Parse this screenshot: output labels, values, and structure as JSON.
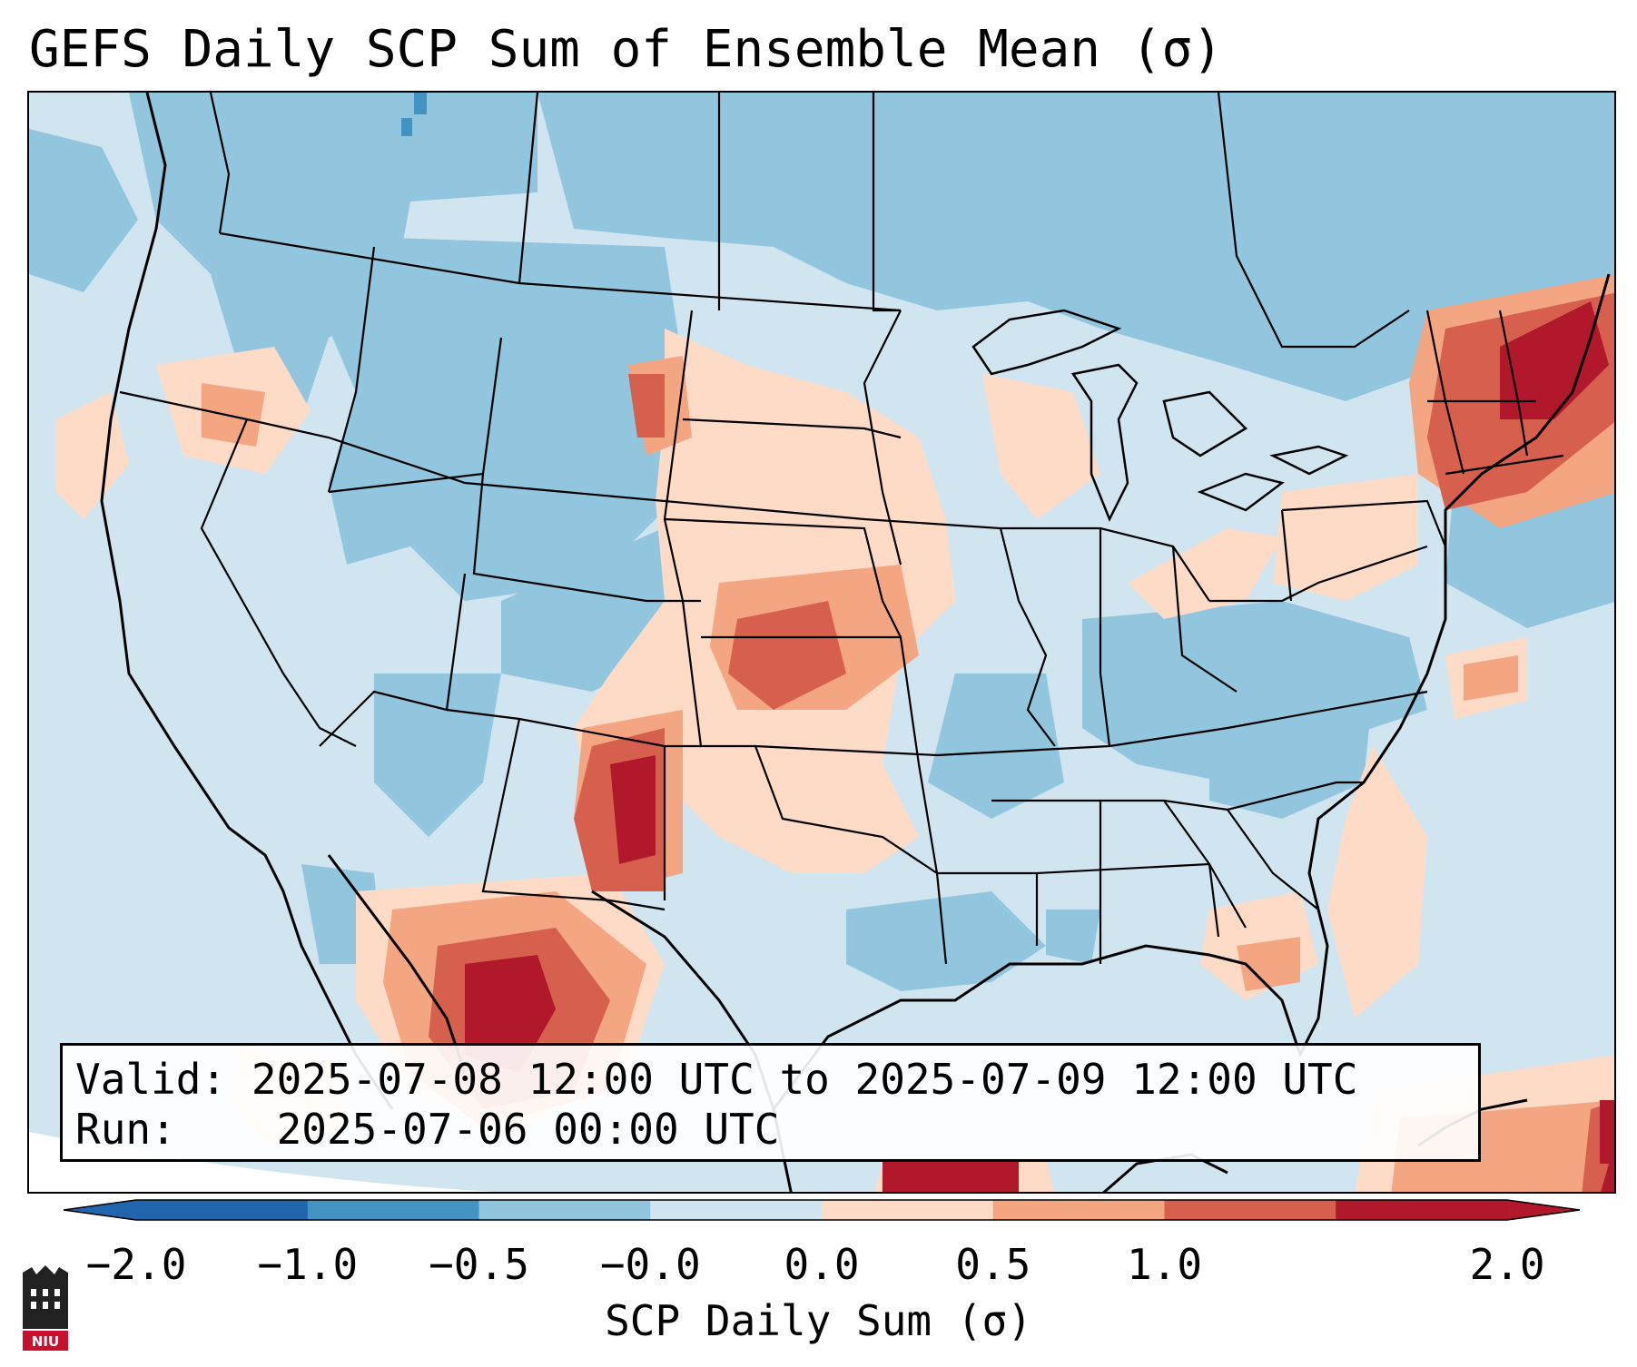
{
  "title": "GEFS Daily SCP Sum of Ensemble Mean (σ)",
  "info": {
    "valid_label": "Valid:",
    "valid_value": "2025-07-08 12:00 UTC to 2025-07-09 12:00 UTC",
    "run_label": "Run:",
    "run_value": "2025-07-06 00:00 UTC"
  },
  "colorbar": {
    "title": "SCP Daily Sum (σ)",
    "ticks": [
      "−2.0",
      "−1.0",
      "−0.5",
      "−0.0",
      "0.0",
      "0.5",
      "1.0",
      "2.0"
    ],
    "bin_colors": [
      "#2166ac",
      "#4393c3",
      "#92c5de",
      "#d1e5f0",
      "#fddbc7",
      "#f4a582",
      "#d6604d",
      "#b2182b"
    ],
    "over_color": "#b2182b",
    "under_color": "#2166ac"
  },
  "map": {
    "projection": "Lambert Conformal",
    "region": "CONUS",
    "background_category": "#d1e5f0",
    "ocean_tint": "#d1e5f0"
  },
  "logo": {
    "text": "NIU",
    "color": "#c8102e"
  }
}
